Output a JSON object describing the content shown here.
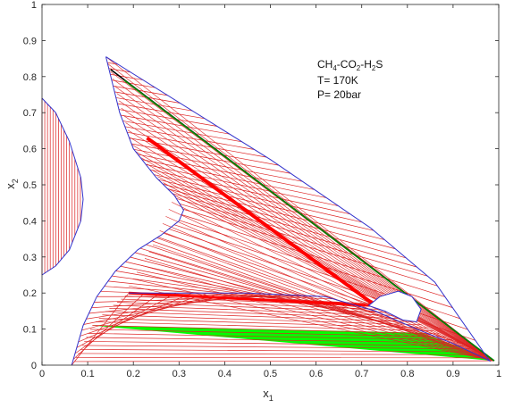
{
  "chart_data": {
    "type": "line",
    "title": "",
    "xlabel": "x",
    "xlabel_sub": "1",
    "ylabel": "x",
    "ylabel_sub": "2",
    "xlim": [
      0,
      1
    ],
    "ylim": [
      0,
      1
    ],
    "x_ticks": [
      "0",
      "0.1",
      "0.2",
      "0.3",
      "0.4",
      "0.5",
      "0.6",
      "0.7",
      "0.8",
      "0.9",
      "1"
    ],
    "y_ticks": [
      "0",
      "0.1",
      "0.2",
      "0.3",
      "0.4",
      "0.5",
      "0.6",
      "0.7",
      "0.8",
      "0.9",
      "1"
    ],
    "grid": false,
    "annotations": {
      "system": {
        "parts": [
          "CH",
          "4",
          "-CO",
          "2",
          "-H",
          "2",
          "S"
        ]
      },
      "temperature": "T= 170K",
      "pressure": "P= 20bar"
    },
    "colors": {
      "phase_boundary": "#3333cc",
      "tie_line": "#dd2222",
      "three_phase_region": "#00ff00",
      "three_phase_upper": "#008800",
      "highlight_tie": "#ff0000",
      "black_tie": "#000000"
    },
    "left_boundary": [
      [
        0,
        0.74
      ],
      [
        0.03,
        0.7
      ],
      [
        0.06,
        0.62
      ],
      [
        0.085,
        0.52
      ],
      [
        0.09,
        0.46
      ],
      [
        0.085,
        0.4
      ],
      [
        0.06,
        0.32
      ],
      [
        0.03,
        0.275
      ],
      [
        0,
        0.25
      ]
    ],
    "left_region_x_range": [
      0,
      0.09
    ],
    "main_boundary": [
      [
        0.14,
        0.855
      ],
      [
        0.17,
        0.7
      ],
      [
        0.2,
        0.6
      ],
      [
        0.25,
        0.52
      ],
      [
        0.29,
        0.47
      ],
      [
        0.31,
        0.43
      ],
      [
        0.3,
        0.4
      ],
      [
        0.26,
        0.36
      ],
      [
        0.21,
        0.32
      ],
      [
        0.16,
        0.26
      ],
      [
        0.12,
        0.19
      ],
      [
        0.09,
        0.11
      ],
      [
        0.065,
        0.0
      ]
    ],
    "vapor_boundary": [
      [
        0.14,
        0.855
      ],
      [
        0.5,
        0.57
      ],
      [
        0.72,
        0.38
      ],
      [
        0.86,
        0.23
      ],
      [
        0.98,
        0.012
      ],
      [
        0.9,
        0.06
      ],
      [
        0.82,
        0.1
      ],
      [
        0.73,
        0.15
      ],
      [
        0.62,
        0.19
      ],
      [
        0.45,
        0.2
      ],
      [
        0.19,
        0.2
      ]
    ],
    "bubble": [
      [
        0.74,
        0.19
      ],
      [
        0.78,
        0.205
      ],
      [
        0.81,
        0.19
      ],
      [
        0.83,
        0.155
      ],
      [
        0.82,
        0.12
      ],
      [
        0.79,
        0.125
      ],
      [
        0.75,
        0.15
      ],
      [
        0.715,
        0.165
      ],
      [
        0.74,
        0.19
      ]
    ],
    "three_phase_triangle": [
      [
        0.11,
        0.11
      ],
      [
        0.83,
        0.09
      ],
      [
        0.99,
        0.012
      ]
    ],
    "tie_apex": [
      0.99,
      0.012
    ],
    "highlighted_ties": [
      {
        "from": [
          0.23,
          0.63
        ],
        "to": [
          0.73,
          0.165
        ],
        "color": "#ff0000",
        "width": 4
      },
      {
        "from": [
          0.19,
          0.2
        ],
        "to": [
          0.73,
          0.165
        ],
        "color": "#ff0000",
        "width": 3
      },
      {
        "from": [
          0.15,
          0.82
        ],
        "to": [
          0.99,
          0.012
        ],
        "color": "#000000",
        "width": 1.6
      },
      {
        "from": [
          0.18,
          0.79
        ],
        "to": [
          0.99,
          0.012
        ],
        "color": "#008800",
        "width": 1.6
      }
    ]
  }
}
